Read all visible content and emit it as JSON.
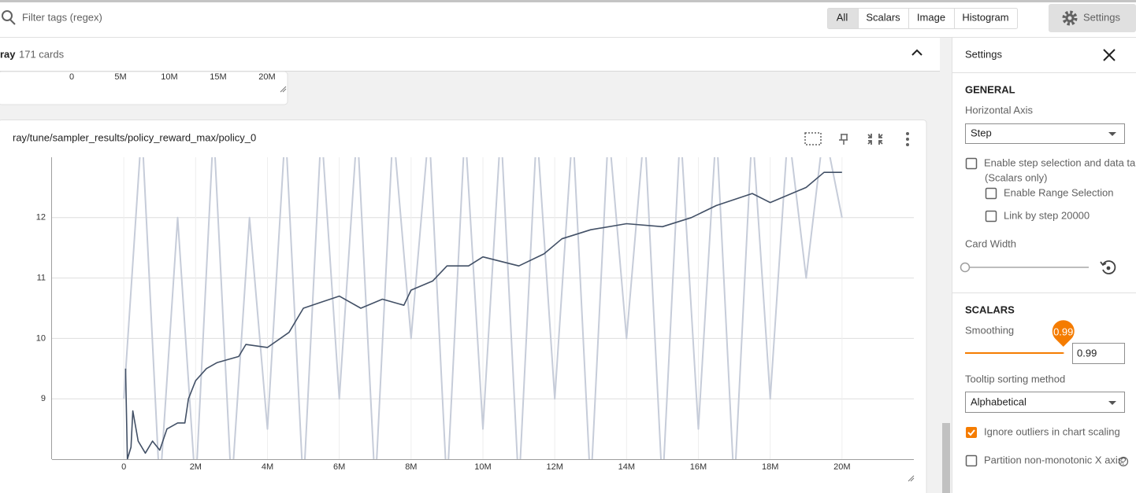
{
  "toolbar": {
    "search_placeholder": "Filter tags (regex)",
    "tabs": [
      "All",
      "Scalars",
      "Image",
      "Histogram"
    ],
    "settings_button": "Settings"
  },
  "group": {
    "name": "ray",
    "count": "171 cards"
  },
  "previous_card": {
    "x_tick_labels": [
      "0",
      "5M",
      "10M",
      "15M",
      "20M"
    ]
  },
  "chart_data": {
    "type": "line",
    "title": "ray/tune/sampler_results/policy_reward_max/policy_0",
    "xlim": [
      -2000000,
      22000000
    ],
    "xticks": [
      {
        "value": 0,
        "label": "0"
      },
      {
        "value": 2000000,
        "label": "2M"
      },
      {
        "value": 4000000,
        "label": "4M"
      },
      {
        "value": 6000000,
        "label": "6M"
      },
      {
        "value": 8000000,
        "label": "8M"
      },
      {
        "value": 10000000,
        "label": "10M"
      },
      {
        "value": 12000000,
        "label": "12M"
      },
      {
        "value": 14000000,
        "label": "14M"
      },
      {
        "value": 16000000,
        "label": "16M"
      },
      {
        "value": 18000000,
        "label": "18M"
      },
      {
        "value": 20000000,
        "label": "20M"
      }
    ],
    "ylim": [
      8,
      13
    ],
    "yticks": [
      9,
      10,
      11,
      12
    ],
    "grid": true,
    "series": [
      {
        "color": "#c6ccd9",
        "x": [
          0,
          500000,
          1000000,
          1500000,
          2000000,
          2500000,
          3000000,
          3500000,
          4000000,
          4500000,
          5000000,
          5500000,
          6000000,
          6500000,
          7000000,
          7500000,
          8000000,
          8500000,
          9000000,
          9500000,
          10000000,
          10500000,
          11000000,
          11500000,
          12000000,
          12500000,
          13000000,
          13500000,
          14000000,
          14500000,
          15000000,
          15500000,
          16000000,
          16500000,
          17000000,
          17500000,
          18000000,
          18500000,
          19000000,
          19500000,
          20000000
        ],
        "values": [
          9,
          13.5,
          7.5,
          12,
          7.5,
          13.5,
          7.5,
          12,
          8.5,
          13.5,
          7.5,
          13.5,
          9,
          13.5,
          7.5,
          13.5,
          10,
          13.5,
          7.5,
          13.5,
          8.5,
          13.5,
          7.5,
          13.5,
          9,
          13.5,
          7.5,
          13.5,
          10,
          13.5,
          7.5,
          13.5,
          8.5,
          13.5,
          7.5,
          13.5,
          9,
          13.5,
          11,
          13.5,
          12
        ]
      },
      {
        "color": "#425066",
        "x": [
          50000,
          100000,
          200000,
          250000,
          400000,
          600000,
          800000,
          1000000,
          1200000,
          1500000,
          1700000,
          1800000,
          2000000,
          2300000,
          2600000,
          3200000,
          3400000,
          4000000,
          4600000,
          5000000,
          5500000,
          6000000,
          6600000,
          7200000,
          7800000,
          8000000,
          8600000,
          9000000,
          9600000,
          10000000,
          11000000,
          11700000,
          12200000,
          13000000,
          14000000,
          15000000,
          15800000,
          16500000,
          17500000,
          18000000,
          19000000,
          19500000,
          20000000
        ],
        "values": [
          9.5,
          8.0,
          8.2,
          8.8,
          8.3,
          8.1,
          8.3,
          8.15,
          8.5,
          8.6,
          8.6,
          9.0,
          9.3,
          9.5,
          9.6,
          9.7,
          9.9,
          9.85,
          10.1,
          10.5,
          10.6,
          10.7,
          10.5,
          10.65,
          10.55,
          10.8,
          10.95,
          11.2,
          11.2,
          11.35,
          11.2,
          11.4,
          11.65,
          11.8,
          11.9,
          11.85,
          12.0,
          12.2,
          12.4,
          12.25,
          12.5,
          12.75,
          12.75
        ]
      }
    ]
  },
  "settings": {
    "title": "Settings",
    "general_heading": "GENERAL",
    "horizontal_axis_label": "Horizontal Axis",
    "horizontal_axis_value": "Step",
    "checkboxes": [
      {
        "label": "Enable step selection and data table",
        "note": "(Scalars only)",
        "checked": false
      },
      {
        "label": "Enable Range Selection",
        "checked": false
      },
      {
        "label": "Link by step 20000",
        "checked": false
      },
      {
        "label": "Ignore outliers in chart scaling",
        "checked": true
      },
      {
        "label": "Partition non-monotonic X axis",
        "checked": false
      }
    ],
    "card_width_label": "Card Width",
    "scalars_heading": "SCALARS",
    "smoothing_label": "Smoothing",
    "smoothing": 0.99,
    "tooltip_label": "Tooltip sorting method",
    "tooltip_value": "Alphabetical"
  }
}
